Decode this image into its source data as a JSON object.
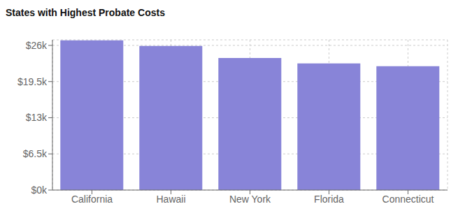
{
  "chart_data": {
    "type": "bar",
    "title": "States with Highest Probate Costs",
    "categories": [
      "California",
      "Hawaii",
      "New York",
      "Florida",
      "Connecticut"
    ],
    "values": [
      26900,
      25900,
      23750,
      22750,
      22250
    ],
    "color": "#8884d8",
    "ylim": [
      0,
      27000
    ],
    "yticks": [
      {
        "value": 0,
        "label": "$0k"
      },
      {
        "value": 6500,
        "label": "$6.5k"
      },
      {
        "value": 13000,
        "label": "$13k"
      },
      {
        "value": 19500,
        "label": "$19.5k"
      },
      {
        "value": 26000,
        "label": "$26k"
      }
    ],
    "grid": true
  }
}
